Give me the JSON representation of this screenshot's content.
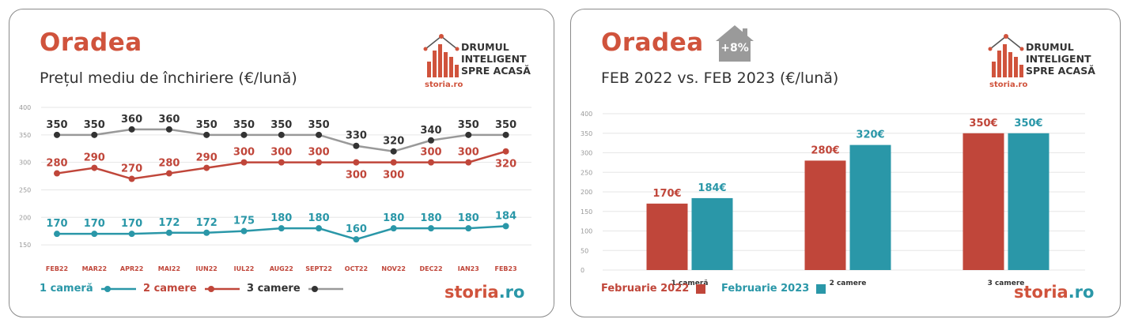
{
  "left": {
    "city": "Oradea",
    "subtitle": "Prețul mediu de închiriere (€/lună)",
    "logo": {
      "line1": "DRUMUL",
      "line2": "INTELIGENT",
      "line3": "SPRE ACASĂ",
      "sub": "storia.ro"
    },
    "brand": {
      "part1": "storia",
      "part2": ".ro"
    },
    "legend": [
      {
        "label": "1 cameră"
      },
      {
        "label": "2 camere"
      },
      {
        "label": "3 camere"
      }
    ]
  },
  "right": {
    "city": "Oradea",
    "badge": "+8%",
    "subtitle": "FEB 2022 vs. FEB 2023 (€/lună)",
    "logo": {
      "line1": "DRUMUL",
      "line2": "INTELIGENT",
      "line3": "SPRE ACASĂ",
      "sub": "storia.ro"
    },
    "brand": {
      "part1": "storia",
      "part2": ".ro"
    },
    "legend": [
      {
        "label": "Februarie 2022"
      },
      {
        "label": "Februarie 2023"
      }
    ]
  },
  "colors": {
    "one_room": "#2a97a8",
    "two_rooms": "#c0463a",
    "three_rooms": "#999999",
    "accent": "#d0533c",
    "dark": "#333333"
  },
  "chart_data": [
    {
      "type": "line",
      "title": "Prețul mediu de închiriere (€/lună)",
      "categories": [
        "FEB22",
        "MAR22",
        "APR22",
        "MAI22",
        "IUN22",
        "IUL22",
        "AUG22",
        "SEPT22",
        "OCT22",
        "NOV22",
        "DEC22",
        "IAN23",
        "FEB23"
      ],
      "series": [
        {
          "name": "1 cameră",
          "values": [
            170,
            170,
            170,
            172,
            172,
            175,
            180,
            180,
            160,
            180,
            180,
            180,
            184
          ]
        },
        {
          "name": "2 camere",
          "values": [
            280,
            290,
            270,
            280,
            290,
            300,
            300,
            300,
            300,
            300,
            300,
            300,
            320
          ]
        },
        {
          "name": "3 camere",
          "values": [
            350,
            350,
            360,
            360,
            350,
            350,
            350,
            350,
            330,
            320,
            340,
            350,
            350
          ]
        }
      ],
      "yticks": [
        150,
        200,
        250,
        300,
        350,
        400
      ],
      "ylim": [
        130,
        400
      ],
      "grid": true,
      "legend": "bottom"
    },
    {
      "type": "bar",
      "title": "FEB 2022 vs. FEB 2023 (€/lună)",
      "categories": [
        "1 cameră",
        "2 camere",
        "3 camere"
      ],
      "series": [
        {
          "name": "Februarie 2022",
          "values": [
            170,
            280,
            350
          ],
          "labels": [
            "170€",
            "280€",
            "350€"
          ]
        },
        {
          "name": "Februarie 2023",
          "values": [
            184,
            320,
            350
          ],
          "labels": [
            "184€",
            "320€",
            "350€"
          ]
        }
      ],
      "yticks": [
        0,
        50,
        100,
        150,
        200,
        250,
        300,
        350,
        400
      ],
      "ylim": [
        0,
        400
      ],
      "grid": true,
      "legend": "bottom"
    }
  ]
}
